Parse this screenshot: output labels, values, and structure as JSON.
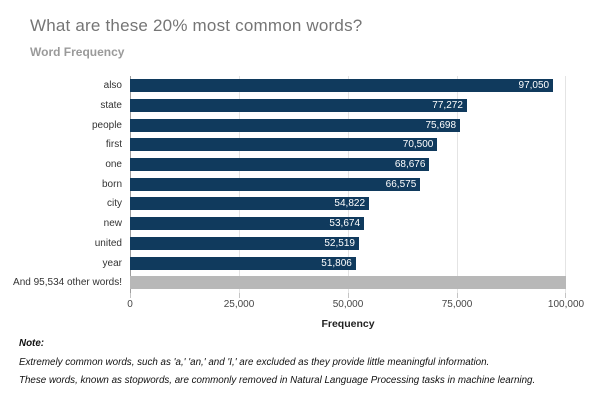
{
  "header": {
    "title": "What are these 20% most common words?",
    "subtitle": "Word Frequency"
  },
  "chart_data": {
    "type": "bar",
    "orientation": "horizontal",
    "title": "Word Frequency",
    "xlabel": "Frequency",
    "ylabel": "",
    "xlim": [
      0,
      100000
    ],
    "x_ticks": [
      "0",
      "25,000",
      "50,000",
      "75,000",
      "100,000"
    ],
    "grid": true,
    "legend_position": "none",
    "categories": [
      "also",
      "state",
      "people",
      "first",
      "one",
      "born",
      "city",
      "new",
      "united",
      "year"
    ],
    "values": [
      97050,
      77272,
      75698,
      70500,
      68676,
      66575,
      54822,
      53674,
      52519,
      51806
    ],
    "value_labels": [
      "97,050",
      "77,272",
      "75,698",
      "70,500",
      "68,676",
      "66,575",
      "54,822",
      "53,674",
      "52,519",
      "51,806"
    ],
    "bar_color": "#103a5d",
    "other_bar": {
      "label": "And 95,534 other words!",
      "value": 95534,
      "full_width": true,
      "color": "#b8b8b8"
    }
  },
  "notes": {
    "heading": "Note:",
    "lines": [
      "Extremely common words, such as 'a,' 'an,' and 'I,' are excluded as they provide little meaningful information.",
      "These words, known as stopwords, are commonly removed in Natural Language Processing tasks in machine learning."
    ]
  },
  "colors": {
    "bar_navy": "#103a5d",
    "bar_gray": "#b8b8b8",
    "gridline": "#e4e4e4",
    "zero_axis_line": "#9e9e9e",
    "tick_mark": "#c4c4c4",
    "title_gray": "#757575",
    "value_text": "#ffffff"
  }
}
